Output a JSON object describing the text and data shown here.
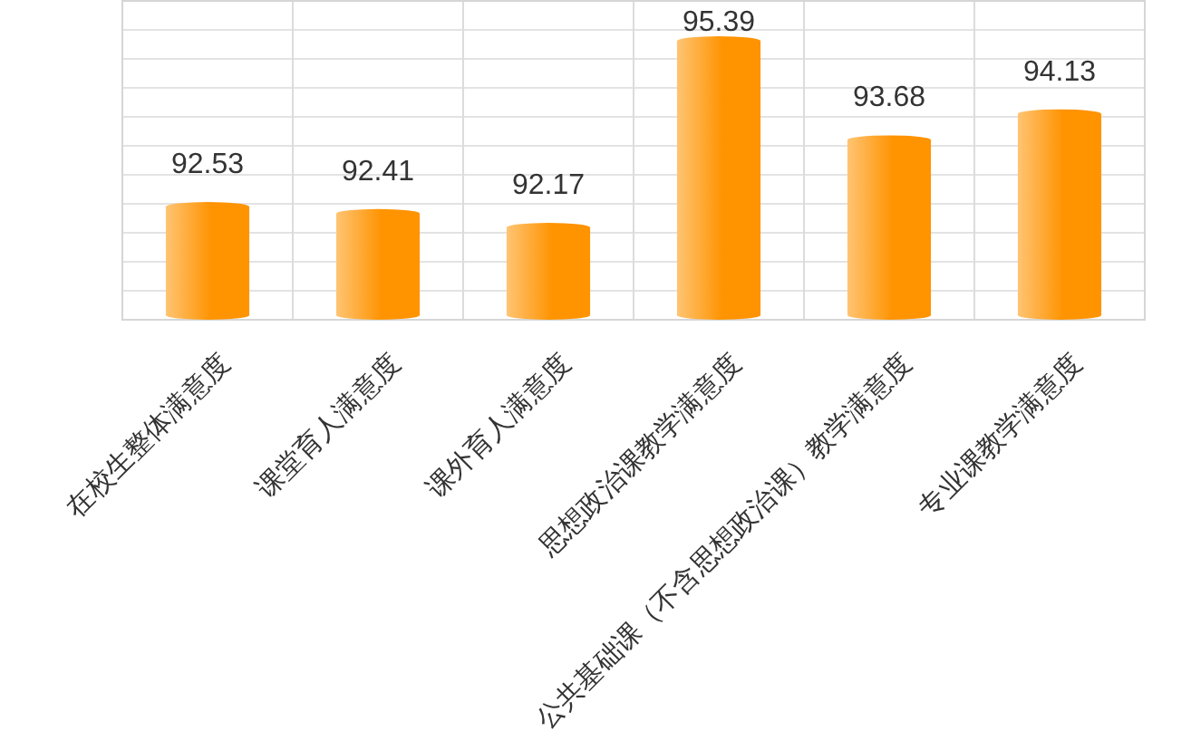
{
  "chart_data": {
    "type": "bar",
    "categories": [
      "在校生整体满意度",
      "课堂育人满意度",
      "课外育人满意度",
      "思想政治课教学满意度",
      "公共基础课（不含思想政治课）教学满意度",
      "专业课教学满意度"
    ],
    "values": [
      92.53,
      92.41,
      92.17,
      95.39,
      93.68,
      94.13
    ],
    "color": "#ff9300",
    "ylim": [
      90.5,
      96
    ],
    "tick_labels": "x",
    "grid": true,
    "data_labels": true
  }
}
